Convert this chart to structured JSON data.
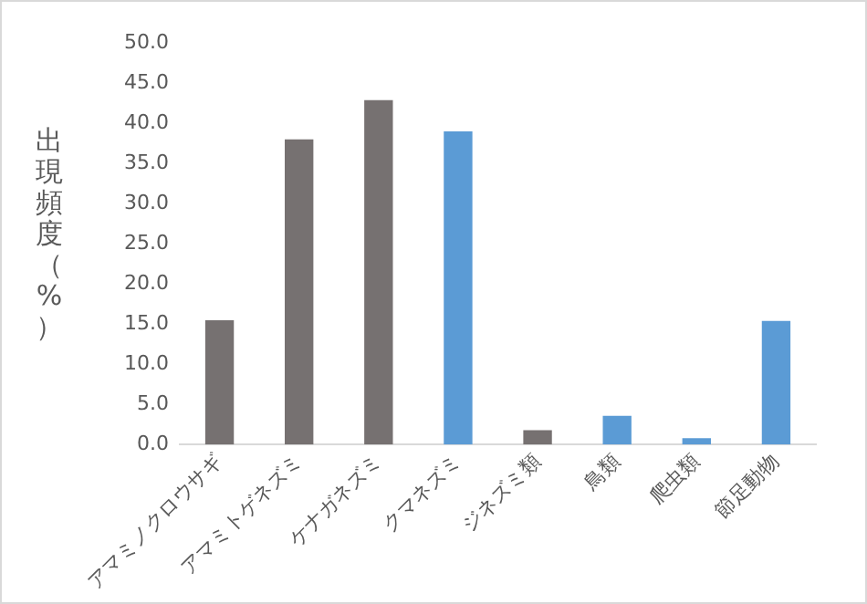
{
  "chart_data": {
    "type": "bar",
    "ylabel": "出現頻度（%）",
    "categories": [
      "アマミノクロウサギ",
      "アマミトゲネズミ",
      "ケナガネズミ",
      "クマネズミ",
      "ジネズミ類",
      "鳥類",
      "爬虫類",
      "節足動物"
    ],
    "values": [
      15.5,
      38.0,
      42.9,
      39.0,
      1.8,
      3.6,
      0.8,
      15.4
    ],
    "colors": [
      "#767171",
      "#767171",
      "#767171",
      "#5b9bd5",
      "#767171",
      "#5b9bd5",
      "#5b9bd5",
      "#5b9bd5"
    ],
    "ylim": [
      0,
      50
    ],
    "yticks": [
      {
        "value": 0,
        "label": "0.0"
      },
      {
        "value": 5,
        "label": "5.0"
      },
      {
        "value": 10,
        "label": "10.0"
      },
      {
        "value": 15,
        "label": "15.0"
      },
      {
        "value": 20,
        "label": "20.0"
      },
      {
        "value": 25,
        "label": "25.0"
      },
      {
        "value": 30,
        "label": "30.0"
      },
      {
        "value": 35,
        "label": "35.0"
      },
      {
        "value": 40,
        "label": "40.0"
      },
      {
        "value": 45,
        "label": "45.0"
      },
      {
        "value": 50,
        "label": "50.0"
      }
    ],
    "grid": false,
    "legend": false
  }
}
